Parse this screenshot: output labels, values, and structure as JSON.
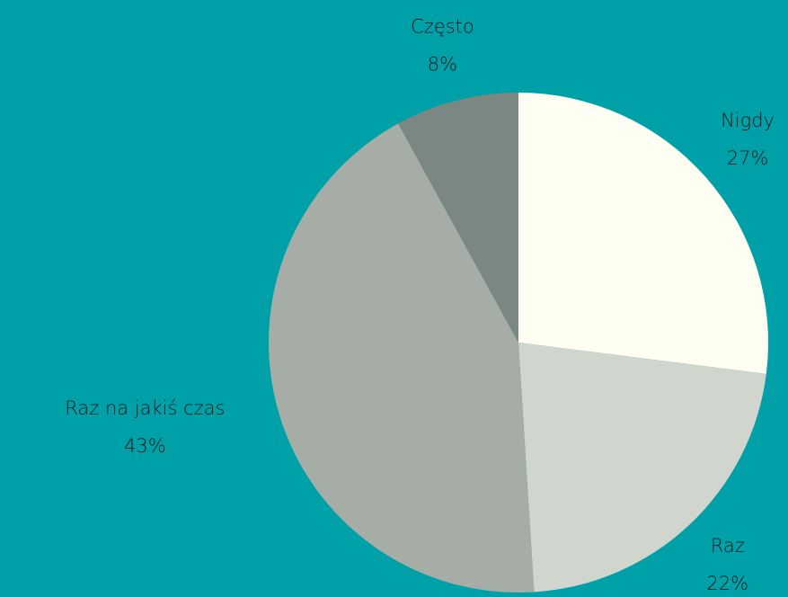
{
  "chart_data": {
    "type": "pie",
    "categories": [
      "Nigdy",
      "Raz",
      "Raz na jakiś czas",
      "Często"
    ],
    "values": [
      27,
      22,
      43,
      8
    ],
    "value_labels": [
      "27%",
      "22%",
      "43%",
      "8%"
    ],
    "colors": [
      "#fefff2",
      "#d0d5cd",
      "#a5ada6",
      "#7a8782"
    ]
  }
}
